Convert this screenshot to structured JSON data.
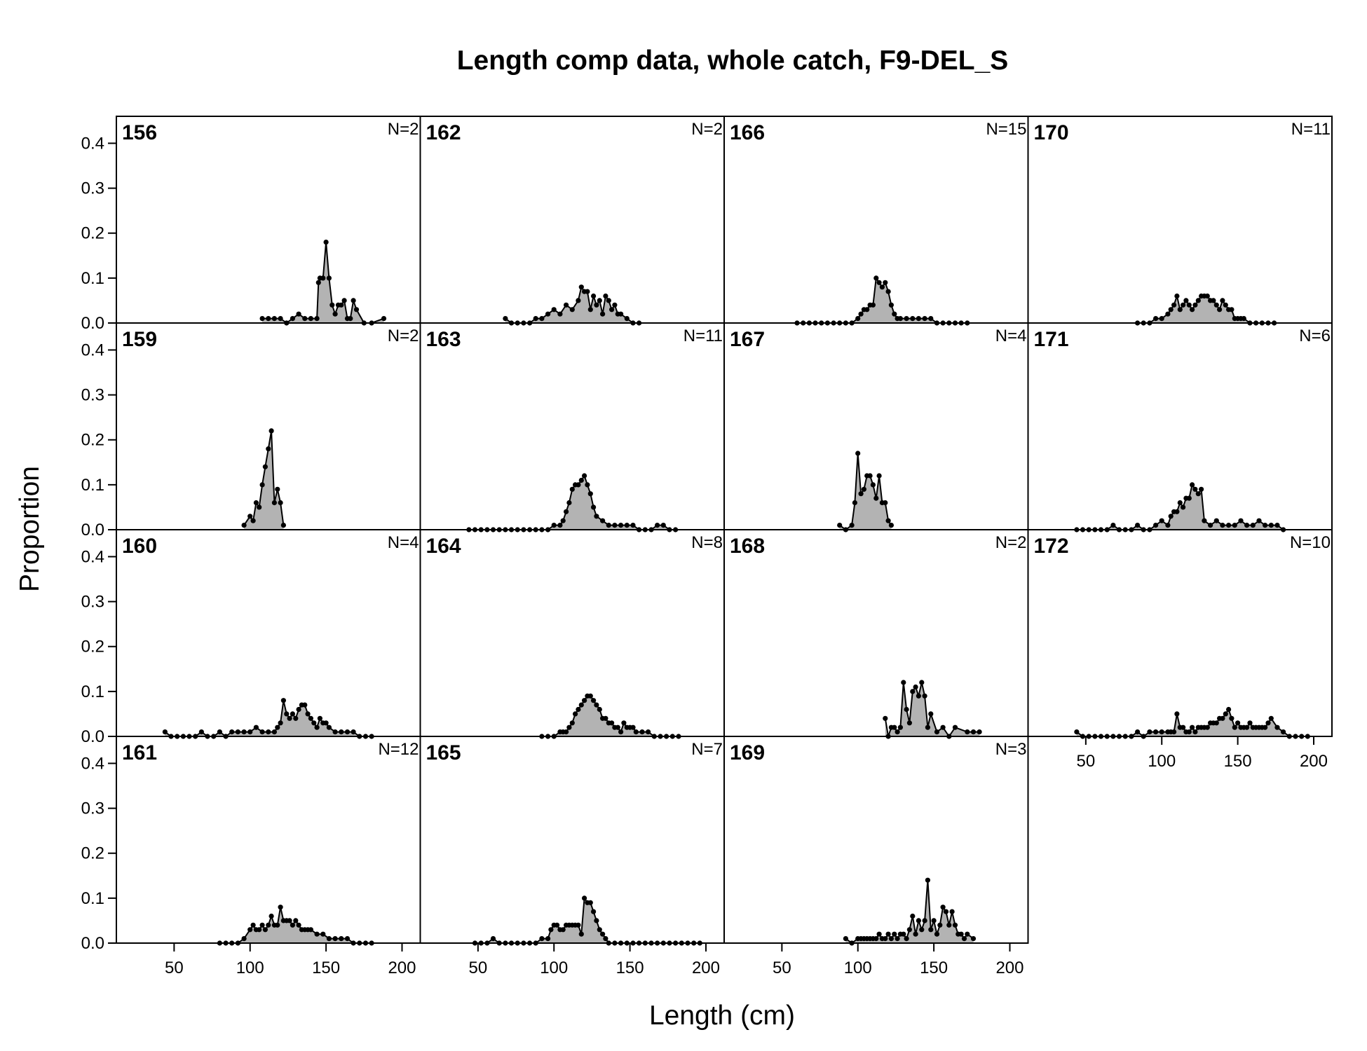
{
  "chart_data": {
    "type": "area",
    "title": "Length comp data, whole catch, F9-DEL_S",
    "xlabel": "Length (cm)",
    "ylabel": "Proportion",
    "xlim": [
      12,
      212
    ],
    "ylim": [
      0,
      0.46
    ],
    "x_ticks": [
      50,
      100,
      150,
      200
    ],
    "y_ticks": [
      0.0,
      0.1,
      0.2,
      0.3,
      0.4
    ],
    "x_tick_labels": [
      "50",
      "100",
      "150",
      "200"
    ],
    "y_tick_labels": [
      "0.0",
      "0.1",
      "0.2",
      "0.3",
      "0.4"
    ],
    "fill_color": "#b3b3b3",
    "line_color": "#000000",
    "grid": false,
    "panels": [
      {
        "year": "156",
        "n": "N=2",
        "x": [
          108,
          112,
          116,
          120,
          124,
          128,
          132,
          136,
          140,
          144,
          145,
          146,
          148,
          150,
          152,
          154,
          156,
          158,
          160,
          162,
          164,
          166,
          168,
          170,
          175,
          180,
          188
        ],
        "y": [
          0.01,
          0.01,
          0.01,
          0.01,
          0,
          0.01,
          0.02,
          0.01,
          0.01,
          0.01,
          0.09,
          0.1,
          0.1,
          0.18,
          0.1,
          0.04,
          0.02,
          0.04,
          0.04,
          0.05,
          0.01,
          0.01,
          0.05,
          0.03,
          0,
          0,
          0.01
        ]
      },
      {
        "year": "162",
        "n": "N=2",
        "x": [
          68,
          72,
          76,
          80,
          84,
          88,
          92,
          96,
          100,
          104,
          108,
          112,
          116,
          118,
          120,
          122,
          124,
          126,
          128,
          130,
          132,
          134,
          136,
          138,
          140,
          142,
          144,
          148,
          152,
          156
        ],
        "y": [
          0.01,
          0,
          0,
          0,
          0,
          0.01,
          0.01,
          0.02,
          0.03,
          0.02,
          0.04,
          0.03,
          0.05,
          0.08,
          0.07,
          0.07,
          0.03,
          0.06,
          0.04,
          0.05,
          0.02,
          0.06,
          0.05,
          0.03,
          0.04,
          0.02,
          0.02,
          0.01,
          0,
          0
        ]
      },
      {
        "year": "166",
        "n": "N=15",
        "x": [
          60,
          64,
          68,
          72,
          76,
          80,
          84,
          88,
          92,
          96,
          100,
          102,
          104,
          106,
          108,
          110,
          112,
          114,
          116,
          118,
          120,
          122,
          124,
          126,
          128,
          132,
          136,
          140,
          144,
          148,
          152,
          156,
          160,
          164,
          168,
          172
        ],
        "y": [
          0,
          0,
          0,
          0,
          0,
          0,
          0,
          0,
          0,
          0,
          0.01,
          0.02,
          0.03,
          0.03,
          0.04,
          0.04,
          0.1,
          0.09,
          0.08,
          0.09,
          0.07,
          0.04,
          0.02,
          0.01,
          0.01,
          0.01,
          0.01,
          0.01,
          0.01,
          0.01,
          0,
          0,
          0,
          0,
          0,
          0
        ]
      },
      {
        "year": "170",
        "n": "N=11",
        "x": [
          84,
          88,
          92,
          96,
          100,
          104,
          106,
          108,
          110,
          112,
          114,
          116,
          118,
          120,
          122,
          124,
          126,
          128,
          130,
          132,
          134,
          136,
          138,
          140,
          142,
          144,
          146,
          148,
          150,
          152,
          154,
          158,
          162,
          166,
          170,
          174
        ],
        "y": [
          0,
          0,
          0,
          0.01,
          0.01,
          0.02,
          0.03,
          0.04,
          0.06,
          0.03,
          0.04,
          0.05,
          0.04,
          0.03,
          0.04,
          0.05,
          0.06,
          0.06,
          0.06,
          0.05,
          0.05,
          0.04,
          0.03,
          0.05,
          0.04,
          0.03,
          0.03,
          0.01,
          0.01,
          0.01,
          0.01,
          0,
          0,
          0,
          0,
          0
        ]
      },
      {
        "year": "159",
        "n": "N=2",
        "x": [
          96,
          100,
          102,
          104,
          106,
          108,
          110,
          112,
          114,
          116,
          118,
          120,
          122
        ],
        "y": [
          0.01,
          0.03,
          0.02,
          0.06,
          0.05,
          0.1,
          0.14,
          0.18,
          0.22,
          0.06,
          0.09,
          0.06,
          0.01
        ]
      },
      {
        "year": "163",
        "n": "N=11",
        "x": [
          44,
          48,
          52,
          56,
          60,
          64,
          68,
          72,
          76,
          80,
          84,
          88,
          92,
          96,
          100,
          104,
          106,
          108,
          110,
          112,
          114,
          116,
          118,
          120,
          122,
          124,
          126,
          128,
          132,
          136,
          140,
          144,
          148,
          152,
          156,
          160,
          164,
          168,
          172,
          176,
          180
        ],
        "y": [
          0,
          0,
          0,
          0,
          0,
          0,
          0,
          0,
          0,
          0,
          0,
          0,
          0,
          0,
          0.01,
          0.01,
          0.02,
          0.04,
          0.06,
          0.09,
          0.1,
          0.1,
          0.11,
          0.12,
          0.1,
          0.08,
          0.05,
          0.03,
          0.02,
          0.01,
          0.01,
          0.01,
          0.01,
          0.01,
          0,
          0,
          0,
          0.01,
          0.01,
          0,
          0
        ]
      },
      {
        "year": "167",
        "n": "N=4",
        "x": [
          88,
          92,
          96,
          98,
          100,
          102,
          104,
          106,
          108,
          110,
          112,
          114,
          116,
          118,
          120,
          122
        ],
        "y": [
          0.01,
          0,
          0.01,
          0.06,
          0.17,
          0.08,
          0.09,
          0.12,
          0.12,
          0.1,
          0.07,
          0.12,
          0.06,
          0.06,
          0.02,
          0.01
        ]
      },
      {
        "year": "171",
        "n": "N=6",
        "x": [
          44,
          48,
          52,
          56,
          60,
          64,
          68,
          72,
          76,
          80,
          84,
          88,
          92,
          96,
          100,
          104,
          106,
          108,
          110,
          112,
          114,
          116,
          118,
          120,
          122,
          124,
          126,
          128,
          132,
          136,
          140,
          144,
          148,
          152,
          156,
          160,
          164,
          168,
          172,
          176,
          180
        ],
        "y": [
          0,
          0,
          0,
          0,
          0,
          0,
          0.01,
          0,
          0,
          0,
          0.01,
          0,
          0,
          0.01,
          0.02,
          0.01,
          0.03,
          0.04,
          0.04,
          0.06,
          0.05,
          0.07,
          0.07,
          0.1,
          0.09,
          0.08,
          0.09,
          0.02,
          0.01,
          0.02,
          0.01,
          0.01,
          0.01,
          0.02,
          0.01,
          0.01,
          0.02,
          0.01,
          0.01,
          0.01,
          0
        ]
      },
      {
        "year": "160",
        "n": "N=4",
        "x": [
          44,
          48,
          52,
          56,
          60,
          64,
          68,
          72,
          76,
          80,
          84,
          88,
          92,
          96,
          100,
          104,
          108,
          112,
          116,
          118,
          120,
          122,
          124,
          126,
          128,
          130,
          132,
          134,
          136,
          138,
          140,
          142,
          144,
          146,
          148,
          150,
          152,
          156,
          160,
          164,
          168,
          172,
          176,
          180
        ],
        "y": [
          0.01,
          0,
          0,
          0,
          0,
          0,
          0.01,
          0,
          0,
          0.01,
          0,
          0.01,
          0.01,
          0.01,
          0.01,
          0.02,
          0.01,
          0.01,
          0.01,
          0.02,
          0.03,
          0.08,
          0.05,
          0.04,
          0.05,
          0.04,
          0.06,
          0.07,
          0.07,
          0.05,
          0.04,
          0.03,
          0.02,
          0.04,
          0.03,
          0.03,
          0.02,
          0.01,
          0.01,
          0.01,
          0.01,
          0,
          0,
          0
        ]
      },
      {
        "year": "164",
        "n": "N=8",
        "x": [
          92,
          96,
          100,
          104,
          106,
          108,
          110,
          112,
          114,
          116,
          118,
          120,
          122,
          124,
          126,
          128,
          130,
          132,
          134,
          136,
          138,
          140,
          142,
          144,
          146,
          148,
          150,
          152,
          154,
          158,
          162,
          166,
          170,
          174,
          178,
          182
        ],
        "y": [
          0,
          0,
          0,
          0.01,
          0.01,
          0.01,
          0.02,
          0.03,
          0.05,
          0.06,
          0.07,
          0.08,
          0.09,
          0.09,
          0.08,
          0.07,
          0.06,
          0.04,
          0.04,
          0.03,
          0.03,
          0.02,
          0.02,
          0.01,
          0.03,
          0.02,
          0.02,
          0.02,
          0.01,
          0.01,
          0.01,
          0,
          0,
          0,
          0,
          0
        ]
      },
      {
        "year": "168",
        "n": "N=2",
        "x": [
          118,
          120,
          122,
          124,
          126,
          128,
          130,
          132,
          134,
          136,
          138,
          140,
          142,
          144,
          146,
          148,
          152,
          156,
          160,
          164,
          172,
          176,
          180
        ],
        "y": [
          0.04,
          0,
          0.02,
          0.02,
          0.01,
          0.02,
          0.12,
          0.06,
          0.03,
          0.1,
          0.11,
          0.09,
          0.12,
          0.09,
          0.02,
          0.05,
          0.01,
          0.02,
          0,
          0.02,
          0.01,
          0.01,
          0.01
        ]
      },
      {
        "year": "172",
        "n": "N=10",
        "x": [
          44,
          48,
          52,
          56,
          60,
          64,
          68,
          72,
          76,
          80,
          84,
          88,
          92,
          96,
          100,
          104,
          106,
          108,
          110,
          112,
          114,
          116,
          118,
          120,
          122,
          124,
          126,
          128,
          130,
          132,
          134,
          136,
          138,
          140,
          142,
          144,
          146,
          148,
          150,
          152,
          154,
          156,
          158,
          160,
          162,
          164,
          166,
          168,
          170,
          172,
          176,
          180,
          184,
          188,
          192,
          196
        ],
        "y": [
          0.01,
          0,
          0,
          0,
          0,
          0,
          0,
          0,
          0,
          0,
          0.01,
          0,
          0.01,
          0.01,
          0.01,
          0.01,
          0.01,
          0.01,
          0.05,
          0.02,
          0.02,
          0.01,
          0.01,
          0.02,
          0.01,
          0.02,
          0.02,
          0.02,
          0.02,
          0.03,
          0.03,
          0.03,
          0.04,
          0.04,
          0.05,
          0.06,
          0.04,
          0.02,
          0.03,
          0.02,
          0.02,
          0.02,
          0.03,
          0.02,
          0.02,
          0.02,
          0.02,
          0.02,
          0.03,
          0.04,
          0.02,
          0.01,
          0,
          0,
          0,
          0
        ]
      },
      {
        "year": "161",
        "n": "N=12",
        "x": [
          80,
          84,
          88,
          92,
          96,
          100,
          102,
          104,
          106,
          108,
          110,
          112,
          114,
          116,
          118,
          120,
          122,
          124,
          126,
          128,
          130,
          132,
          134,
          136,
          138,
          140,
          144,
          148,
          152,
          156,
          160,
          164,
          168,
          172,
          176,
          180
        ],
        "y": [
          0,
          0,
          0,
          0,
          0.01,
          0.03,
          0.04,
          0.03,
          0.03,
          0.04,
          0.03,
          0.04,
          0.06,
          0.04,
          0.04,
          0.08,
          0.05,
          0.05,
          0.05,
          0.04,
          0.05,
          0.04,
          0.03,
          0.03,
          0.03,
          0.03,
          0.02,
          0.02,
          0.01,
          0.01,
          0.01,
          0.01,
          0,
          0,
          0,
          0
        ]
      },
      {
        "year": "165",
        "n": "N=7",
        "x": [
          48,
          52,
          56,
          60,
          64,
          68,
          72,
          76,
          80,
          84,
          88,
          92,
          96,
          98,
          100,
          102,
          104,
          106,
          108,
          110,
          112,
          114,
          116,
          118,
          120,
          122,
          124,
          126,
          128,
          130,
          132,
          134,
          136,
          140,
          144,
          148,
          152,
          156,
          160,
          164,
          168,
          172,
          176,
          180,
          184,
          188,
          192,
          196
        ],
        "y": [
          0,
          0,
          0,
          0.01,
          0,
          0,
          0,
          0,
          0,
          0,
          0,
          0.01,
          0.01,
          0.03,
          0.04,
          0.04,
          0.03,
          0.03,
          0.04,
          0.04,
          0.04,
          0.04,
          0.04,
          0.02,
          0.1,
          0.09,
          0.09,
          0.07,
          0.05,
          0.03,
          0.02,
          0.01,
          0,
          0,
          0,
          0,
          0,
          0,
          0,
          0,
          0,
          0,
          0,
          0,
          0,
          0,
          0,
          0
        ]
      },
      {
        "year": "169",
        "n": "N=3",
        "x": [
          92,
          96,
          100,
          102,
          104,
          106,
          108,
          110,
          112,
          114,
          116,
          118,
          120,
          122,
          124,
          126,
          128,
          130,
          132,
          134,
          136,
          138,
          140,
          142,
          144,
          146,
          148,
          150,
          152,
          154,
          156,
          158,
          160,
          162,
          164,
          166,
          168,
          170,
          172,
          176
        ],
        "y": [
          0.01,
          0,
          0.01,
          0.01,
          0.01,
          0.01,
          0.01,
          0.01,
          0.01,
          0.02,
          0.01,
          0.01,
          0.02,
          0.01,
          0.02,
          0.01,
          0.02,
          0.02,
          0.01,
          0.03,
          0.06,
          0.02,
          0.05,
          0.03,
          0.05,
          0.14,
          0.03,
          0.05,
          0.02,
          0.04,
          0.08,
          0.07,
          0.04,
          0.07,
          0.04,
          0.02,
          0.02,
          0.01,
          0.02,
          0.01
        ]
      }
    ]
  }
}
